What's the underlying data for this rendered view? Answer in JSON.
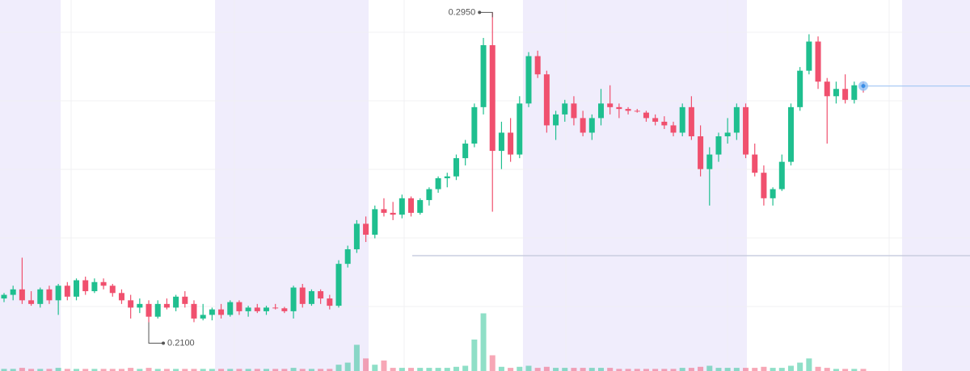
{
  "chart_data": {
    "type": "candlestick",
    "up_color": "#1fbf8f",
    "down_color": "#f0506e",
    "open": [
      0.2165,
      0.2175,
      0.219,
      0.216,
      0.215,
      0.219,
      0.216,
      0.22,
      0.217,
      0.2215,
      0.2185,
      0.221,
      0.22,
      0.218,
      0.216,
      0.214,
      0.215,
      0.2115,
      0.215,
      0.214,
      0.217,
      0.215,
      0.211,
      0.212,
      0.2135,
      0.212,
      0.2155,
      0.213,
      0.214,
      0.213,
      0.214,
      0.2138,
      0.213,
      0.2195,
      0.215,
      0.2185,
      0.2165,
      0.2145,
      0.226,
      0.23,
      0.237,
      0.234,
      0.241,
      0.24,
      0.2395,
      0.244,
      0.24,
      0.2435,
      0.2465,
      0.2495,
      0.25,
      0.255,
      0.259,
      0.269,
      0.286,
      0.257,
      0.262,
      0.256,
      0.27,
      0.283,
      0.278,
      0.264,
      0.267,
      0.27,
      0.266,
      0.262,
      0.266,
      0.27,
      0.269,
      0.2685,
      0.268,
      0.2675,
      0.266,
      0.265,
      0.264,
      0.262,
      0.269,
      0.261,
      0.252,
      0.256,
      0.261,
      0.262,
      0.269,
      0.256,
      0.251,
      0.244,
      0.2465,
      0.254,
      0.269,
      0.279,
      0.287,
      0.276,
      0.272,
      0.274,
      0.271,
      0.275
    ],
    "high": [
      0.218,
      0.22,
      0.2277,
      0.2185,
      0.2195,
      0.22,
      0.2205,
      0.221,
      0.222,
      0.2225,
      0.222,
      0.222,
      0.2205,
      0.219,
      0.2175,
      0.2165,
      0.216,
      0.216,
      0.2165,
      0.2175,
      0.2185,
      0.216,
      0.215,
      0.214,
      0.215,
      0.216,
      0.216,
      0.2145,
      0.215,
      0.2145,
      0.215,
      0.2142,
      0.22,
      0.2205,
      0.219,
      0.219,
      0.2175,
      0.227,
      0.231,
      0.238,
      0.239,
      0.242,
      0.244,
      0.243,
      0.245,
      0.2445,
      0.244,
      0.247,
      0.25,
      0.251,
      0.256,
      0.26,
      0.27,
      0.288,
      0.295,
      0.265,
      0.266,
      0.272,
      0.2841,
      0.2845,
      0.279,
      0.268,
      0.271,
      0.272,
      0.268,
      0.267,
      0.274,
      0.275,
      0.27,
      0.269,
      0.2685,
      0.268,
      0.267,
      0.2665,
      0.265,
      0.27,
      0.272,
      0.264,
      0.258,
      0.262,
      0.266,
      0.27,
      0.27,
      0.259,
      0.253,
      0.247,
      0.256,
      0.27,
      0.28,
      0.289,
      0.2884,
      0.277,
      0.276,
      0.278,
      0.276,
      0.276
    ],
    "low": [
      0.2155,
      0.216,
      0.215,
      0.2145,
      0.214,
      0.215,
      0.212,
      0.216,
      0.216,
      0.2175,
      0.218,
      0.219,
      0.217,
      0.215,
      0.211,
      0.2125,
      0.21,
      0.211,
      0.2135,
      0.213,
      0.214,
      0.21,
      0.2105,
      0.2105,
      0.211,
      0.2115,
      0.212,
      0.2115,
      0.2125,
      0.212,
      0.2135,
      0.2125,
      0.211,
      0.214,
      0.2145,
      0.215,
      0.2135,
      0.214,
      0.225,
      0.229,
      0.232,
      0.233,
      0.239,
      0.238,
      0.2385,
      0.239,
      0.2395,
      0.242,
      0.2455,
      0.247,
      0.249,
      0.253,
      0.258,
      0.267,
      0.2403,
      0.252,
      0.254,
      0.255,
      0.269,
      0.277,
      0.262,
      0.26,
      0.265,
      0.264,
      0.261,
      0.26,
      0.264,
      0.267,
      0.266,
      0.267,
      0.2675,
      0.265,
      0.264,
      0.263,
      0.261,
      0.261,
      0.26,
      0.25,
      0.242,
      0.254,
      0.259,
      0.26,
      0.255,
      0.25,
      0.242,
      0.242,
      0.246,
      0.253,
      0.268,
      0.278,
      0.274,
      0.259,
      0.27,
      0.27,
      0.27,
      0.273
    ],
    "close": [
      0.2175,
      0.219,
      0.216,
      0.215,
      0.219,
      0.216,
      0.22,
      0.217,
      0.2215,
      0.2185,
      0.221,
      0.22,
      0.218,
      0.216,
      0.214,
      0.215,
      0.2115,
      0.215,
      0.214,
      0.217,
      0.215,
      0.211,
      0.212,
      0.2135,
      0.212,
      0.2155,
      0.213,
      0.214,
      0.213,
      0.214,
      0.2138,
      0.213,
      0.2195,
      0.215,
      0.2185,
      0.2165,
      0.2145,
      0.226,
      0.23,
      0.237,
      0.234,
      0.241,
      0.24,
      0.2395,
      0.244,
      0.24,
      0.2435,
      0.2465,
      0.2495,
      0.25,
      0.255,
      0.259,
      0.269,
      0.286,
      0.257,
      0.262,
      0.256,
      0.27,
      0.283,
      0.278,
      0.264,
      0.267,
      0.27,
      0.266,
      0.262,
      0.266,
      0.27,
      0.269,
      0.2685,
      0.268,
      0.2678,
      0.266,
      0.265,
      0.264,
      0.262,
      0.269,
      0.261,
      0.252,
      0.256,
      0.261,
      0.262,
      0.269,
      0.256,
      0.251,
      0.244,
      0.2465,
      0.254,
      0.269,
      0.279,
      0.287,
      0.276,
      0.272,
      0.274,
      0.271,
      0.275,
      0.2748
    ],
    "volume": [
      2,
      2,
      3,
      2,
      2,
      2,
      3,
      2,
      2,
      2,
      2,
      2,
      2,
      2,
      3,
      2,
      3,
      2,
      2,
      2,
      2,
      2,
      2,
      2,
      2,
      2,
      2,
      2,
      2,
      2,
      2,
      2,
      3,
      2,
      2,
      2,
      2,
      6,
      8,
      25,
      12,
      6,
      10,
      3,
      3,
      3,
      3,
      3,
      3,
      3,
      4,
      5,
      30,
      55,
      15,
      4,
      3,
      4,
      5,
      3,
      4,
      3,
      3,
      3,
      3,
      3,
      3,
      3,
      2,
      2,
      2,
      2,
      2,
      2,
      2,
      3,
      3,
      4,
      5,
      3,
      3,
      3,
      3,
      3,
      4,
      3,
      3,
      5,
      8,
      12,
      4,
      3,
      2,
      2,
      2,
      2
    ],
    "ylim": [
      0.1966,
      0.2984
    ],
    "volume_lim": [
      0,
      100
    ],
    "annotations": [
      {
        "text": "0.2950"
      },
      {
        "text": "0.2100"
      }
    ]
  }
}
